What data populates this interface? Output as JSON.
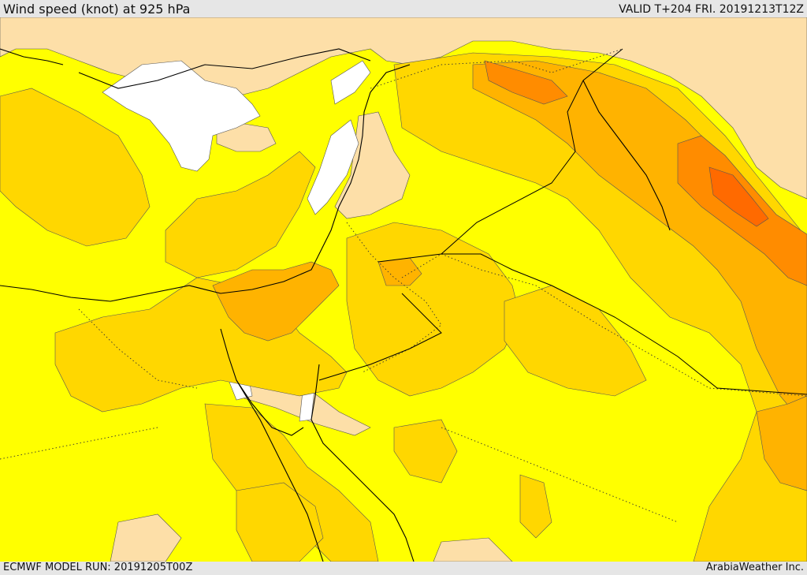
{
  "header": {
    "title": "Wind speed (knot) at 925 hPa",
    "valid": "VALID T+204 FRI. 20191213T12Z"
  },
  "footer": {
    "model_run": "ECMWF MODEL RUN: 20191205T00Z",
    "credit": "ArabiaWeather Inc."
  },
  "map": {
    "field": "wind speed at 925 hPa",
    "colors": {
      "land_light": "#fddfa8",
      "calm_white": "#ffffff",
      "yellow": "#ffff00",
      "gold": "#ffd700",
      "orange_light": "#ffb300",
      "orange": "#ff8c00",
      "orange_dark": "#ff6a00",
      "coast": "#000000"
    }
  }
}
